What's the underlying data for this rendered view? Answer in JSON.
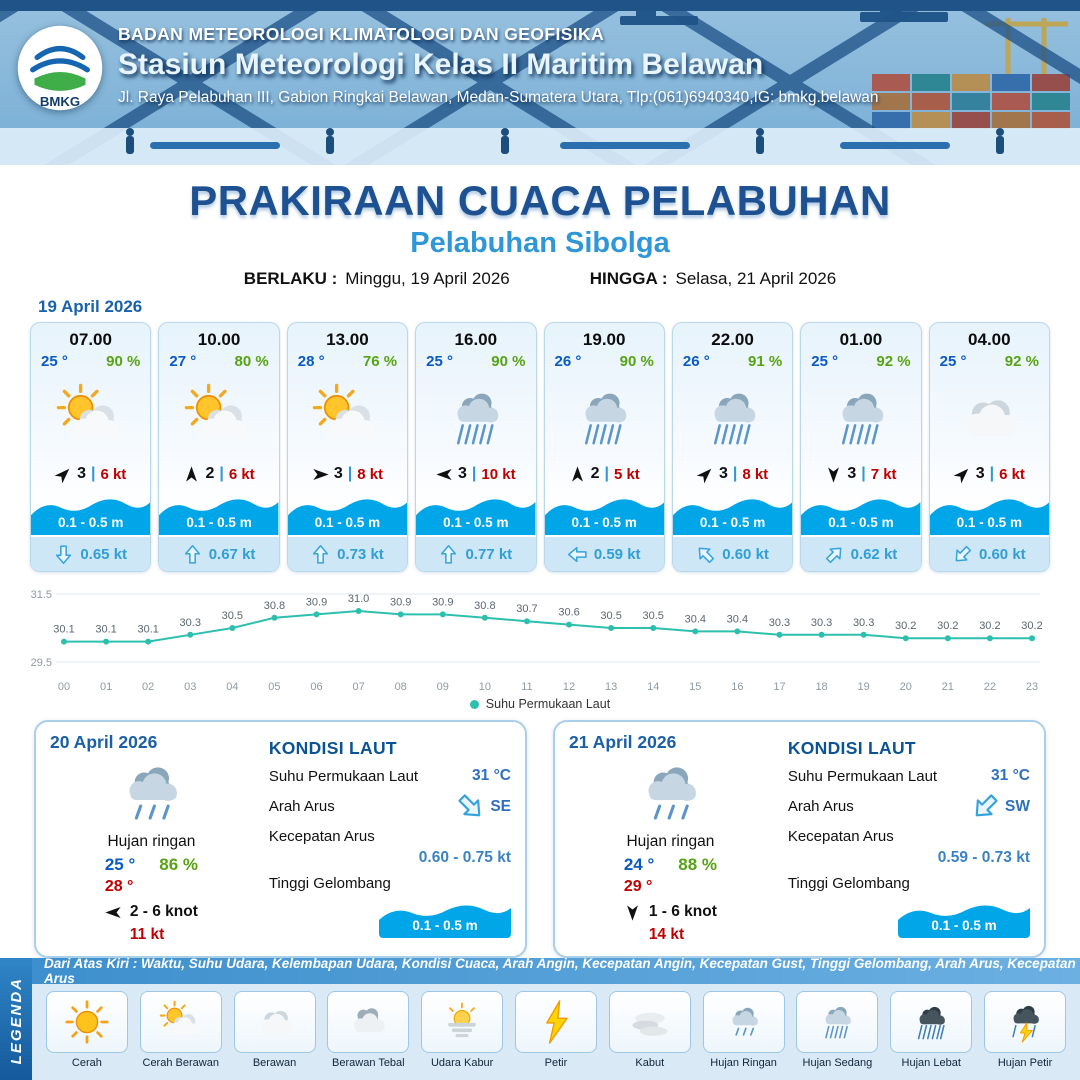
{
  "labels": {
    "divider": "|"
  },
  "header": {
    "logo_text": "BMKG",
    "org": "BADAN METEOROLOGI KLIMATOLOGI DAN GEOFISIKA",
    "station": "Stasiun Meteorologi Kelas II Maritim Belawan",
    "address": "Jl. Raya Pelabuhan III, Gabion Ringkai Belawan, Medan-Sumatera Utara, Tlp:(061)6940340,IG: bmkg.belawan"
  },
  "title": {
    "main": "PRAKIRAAN CUACA PELABUHAN",
    "sub": "Pelabuhan Sibolga",
    "berlaku_label": "BERLAKU :",
    "berlaku_value": "Minggu, 19 April 2026",
    "hingga_label": "HINGGA :",
    "hingga_value": "Selasa, 21 April 2026"
  },
  "hourly_date": "19 April 2026",
  "hourly": [
    {
      "time": "07.00",
      "temp": "25 °",
      "rh": "90 %",
      "icon": "sun-cloud",
      "wind_deg": 45,
      "wind_speed": "3",
      "gust": "6 kt",
      "wave": "0.1 - 0.5 m",
      "current_deg": 180,
      "current": "0.65 kt"
    },
    {
      "time": "10.00",
      "temp": "27 °",
      "rh": "80 %",
      "icon": "sun-cloud",
      "wind_deg": 0,
      "wind_speed": "2",
      "gust": "6 kt",
      "wave": "0.1 - 0.5 m",
      "current_deg": 0,
      "current": "0.67 kt"
    },
    {
      "time": "13.00",
      "temp": "28 °",
      "rh": "76 %",
      "icon": "sun-cloud",
      "wind_deg": 90,
      "wind_speed": "3",
      "gust": "8 kt",
      "wave": "0.1 - 0.5 m",
      "current_deg": 0,
      "current": "0.73 kt"
    },
    {
      "time": "16.00",
      "temp": "25 °",
      "rh": "90 %",
      "icon": "rain-mid",
      "wind_deg": 270,
      "wind_speed": "3",
      "gust": "10 kt",
      "wave": "0.1 - 0.5 m",
      "current_deg": 0,
      "current": "0.77 kt"
    },
    {
      "time": "19.00",
      "temp": "26 °",
      "rh": "90 %",
      "icon": "rain-mid",
      "wind_deg": 0,
      "wind_speed": "2",
      "gust": "5 kt",
      "wave": "0.1 - 0.5 m",
      "current_deg": 270,
      "current": "0.59 kt"
    },
    {
      "time": "22.00",
      "temp": "26 °",
      "rh": "91 %",
      "icon": "rain-mid",
      "wind_deg": 45,
      "wind_speed": "3",
      "gust": "8 kt",
      "wave": "0.1 - 0.5 m",
      "current_deg": 315,
      "current": "0.60 kt"
    },
    {
      "time": "01.00",
      "temp": "25 °",
      "rh": "92 %",
      "icon": "rain-mid",
      "wind_deg": 180,
      "wind_speed": "3",
      "gust": "7 kt",
      "wave": "0.1 - 0.5 m",
      "current_deg": 45,
      "current": "0.62 kt"
    },
    {
      "time": "04.00",
      "temp": "25 °",
      "rh": "92 %",
      "icon": "cloud",
      "wind_deg": 45,
      "wind_speed": "3",
      "gust": "6 kt",
      "wave": "0.1 - 0.5 m",
      "current_deg": 225,
      "current": "0.60 kt"
    }
  ],
  "chart_data": {
    "type": "line",
    "title": "",
    "x": [
      "00",
      "01",
      "02",
      "03",
      "04",
      "05",
      "06",
      "07",
      "08",
      "09",
      "10",
      "11",
      "12",
      "13",
      "14",
      "15",
      "16",
      "17",
      "18",
      "19",
      "20",
      "21",
      "22",
      "23"
    ],
    "values": [
      30.1,
      30.1,
      30.1,
      30.3,
      30.5,
      30.8,
      30.9,
      31.0,
      30.9,
      30.9,
      30.8,
      30.7,
      30.6,
      30.5,
      30.5,
      30.4,
      30.4,
      30.3,
      30.3,
      30.3,
      30.2,
      30.2,
      30.2,
      30.2
    ],
    "series_name": "Suhu Permukaan Laut",
    "xlabel": "",
    "ylabel": "",
    "ylim": [
      29.5,
      31.5
    ],
    "line_color": "#2dbfad",
    "grid": true,
    "legend_position": "bottom"
  },
  "daily": [
    {
      "date": "20 April 2026",
      "icon": "rain-light",
      "condition": "Hujan ringan",
      "temp_min": "25 °",
      "rh": "86 %",
      "temp_max": "28 °",
      "wind_deg": 270,
      "wind_range": "2 - 6 knot",
      "gust": "11 kt",
      "sea": {
        "heading": "KONDISI LAUT",
        "sst_label": "Suhu Permukaan Laut",
        "sst": "31 °C",
        "dir_label": "Arah Arus",
        "dir": "SE",
        "dir_deg": 135,
        "speed_label": "Kecepatan Arus",
        "speed": "0.60 - 0.75 kt",
        "wave_label": "Tinggi Gelombang",
        "wave": "0.1 - 0.5 m"
      }
    },
    {
      "date": "21 April 2026",
      "icon": "rain-light",
      "condition": "Hujan ringan",
      "temp_min": "24 °",
      "rh": "88 %",
      "temp_max": "29 °",
      "wind_deg": 180,
      "wind_range": "1 - 6 knot",
      "gust": "14 kt",
      "sea": {
        "heading": "KONDISI LAUT",
        "sst_label": "Suhu Permukaan Laut",
        "sst": "31 °C",
        "dir_label": "Arah Arus",
        "dir": "SW",
        "dir_deg": 225,
        "speed_label": "Kecepatan Arus",
        "speed": "0.59 - 0.73 kt",
        "wave_label": "Tinggi Gelombang",
        "wave": "0.1 - 0.5 m"
      }
    }
  ],
  "legend": {
    "bar_label": "LEGENDA",
    "note": "Dari Atas Kiri : Waktu, Suhu Udara, Kelembapan Udara, Kondisi Cuaca, Arah Angin, Kecepatan Angin, Kecepatan Gust, Tinggi Gelombang, Arah Arus, Kecepatan Arus",
    "items": [
      {
        "label": "Cerah",
        "icon": "sun"
      },
      {
        "label": "Cerah Berawan",
        "icon": "sun-cloud"
      },
      {
        "label": "Berawan",
        "icon": "cloud"
      },
      {
        "label": "Berawan Tebal",
        "icon": "clouds"
      },
      {
        "label": "Udara Kabur",
        "icon": "haze"
      },
      {
        "label": "Petir",
        "icon": "bolt"
      },
      {
        "label": "Kabut",
        "icon": "fog"
      },
      {
        "label": "Hujan Ringan",
        "icon": "rain-light"
      },
      {
        "label": "Hujan Sedang",
        "icon": "rain-mid"
      },
      {
        "label": "Hujan Lebat",
        "icon": "rain-heavy"
      },
      {
        "label": "Hujan Petir",
        "icon": "storm"
      }
    ]
  }
}
